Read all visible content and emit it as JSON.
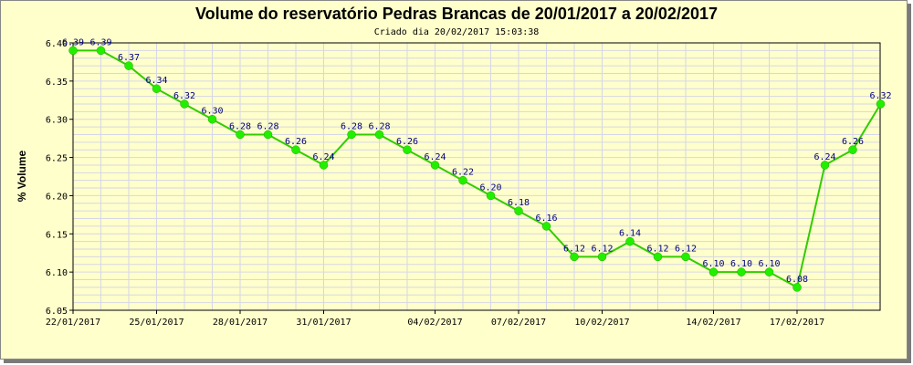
{
  "chart_data": {
    "type": "line",
    "title": "Volume do reservatório Pedras Brancas de 20/01/2017 a 20/02/2017",
    "subtitle": "Criado dia 20/02/2017  15:03:38",
    "xlabel": "",
    "ylabel": "% Volume",
    "ylim": [
      6.05,
      6.4
    ],
    "yticks": [
      "6.40",
      "6.35",
      "6.30",
      "6.25",
      "6.20",
      "6.15",
      "6.10",
      "6.05"
    ],
    "yticks_values": [
      6.4,
      6.35,
      6.3,
      6.25,
      6.2,
      6.15,
      6.1,
      6.05
    ],
    "xlim": [
      "22/01/2017",
      "20/02/2017"
    ],
    "xticks": [
      "22/01/2017",
      "25/01/2017",
      "28/01/2017",
      "31/01/2017",
      "04/02/2017",
      "07/02/2017",
      "10/02/2017",
      "14/02/2017",
      "17/02/2017"
    ],
    "xticks_dates": [
      "2017-01-22",
      "2017-01-25",
      "2017-01-28",
      "2017-01-31",
      "2017-02-04",
      "2017-02-07",
      "2017-02-10",
      "2017-02-14",
      "2017-02-17"
    ],
    "grid": true,
    "line_color": "#33cc00",
    "marker_color": "#22ee00",
    "label_color": "#000080",
    "background_color": "#ffffcc",
    "series": [
      {
        "x": [
          "2017-01-22",
          "2017-01-23",
          "2017-01-24",
          "2017-01-25",
          "2017-01-26",
          "2017-01-27",
          "2017-01-28",
          "2017-01-29",
          "2017-01-30",
          "2017-01-31",
          "2017-02-01",
          "2017-02-02",
          "2017-02-03",
          "2017-02-04",
          "2017-02-05",
          "2017-02-06",
          "2017-02-07",
          "2017-02-08",
          "2017-02-09",
          "2017-02-10",
          "2017-02-11",
          "2017-02-12",
          "2017-02-13",
          "2017-02-14",
          "2017-02-15",
          "2017-02-16",
          "2017-02-17",
          "2017-02-18",
          "2017-02-19",
          "2017-02-20"
        ],
        "values": [
          6.39,
          6.39,
          6.37,
          6.34,
          6.32,
          6.3,
          6.28,
          6.28,
          6.26,
          6.24,
          6.28,
          6.28,
          6.26,
          6.24,
          6.22,
          6.2,
          6.18,
          6.16,
          6.12,
          6.12,
          6.14,
          6.12,
          6.12,
          6.1,
          6.1,
          6.1,
          6.08,
          6.24,
          6.26,
          6.32
        ],
        "labels": [
          "6.39",
          "6.39",
          "6.37",
          "6.34",
          "6.32",
          "6.30",
          "6.28",
          "6.28",
          "6.26",
          "6.24",
          "6.28",
          "6.28",
          "6.26",
          "6.24",
          "6.22",
          "6.20",
          "6.18",
          "6.16",
          "6.12",
          "6.12",
          "6.14",
          "6.12",
          "6.12",
          "6.10",
          "6.10",
          "6.10",
          "6.08",
          "6.24",
          "6.26",
          "6.32"
        ]
      }
    ]
  }
}
